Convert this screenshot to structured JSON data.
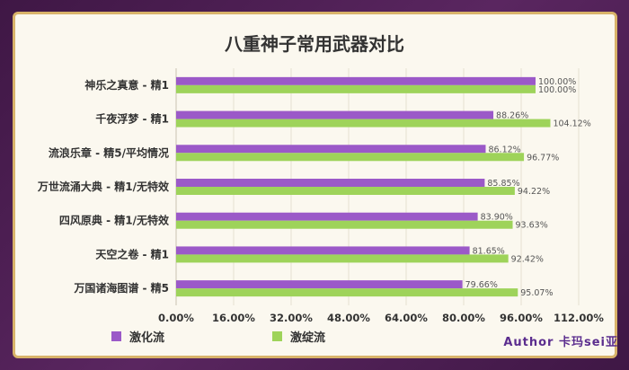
{
  "chart_data": {
    "type": "bar",
    "orientation": "horizontal",
    "title": "八重神子常用武器对比",
    "categories": [
      "神乐之真意 - 精1",
      "千夜浮梦 - 精1",
      "流浪乐章 - 精5/平均情况",
      "万世流涌大典 - 精1/无特效",
      "四风原典 - 精1/无特效",
      "天空之卷 - 精1",
      "万国诸海图谱 - 精5"
    ],
    "series": [
      {
        "name": "激化流",
        "color": "#9b59c8",
        "values": [
          100.0,
          88.26,
          86.12,
          85.85,
          83.9,
          81.65,
          79.66
        ],
        "labels": [
          "100.00%",
          "88.26%",
          "86.12%",
          "85.85%",
          "83.90%",
          "81.65%",
          "79.66%"
        ]
      },
      {
        "name": "激绽流",
        "color": "#9ed35a",
        "values": [
          100.0,
          104.12,
          96.77,
          94.22,
          93.63,
          92.42,
          95.07
        ],
        "labels": [
          "100.00%",
          "104.12%",
          "96.77%",
          "94.22%",
          "93.63%",
          "92.42%",
          "95.07%"
        ]
      }
    ],
    "xlim": [
      0,
      112
    ],
    "xticks": [
      "0.00%",
      "16.00%",
      "32.00%",
      "48.00%",
      "64.00%",
      "80.00%",
      "96.00%",
      "112.00%"
    ],
    "xtick_values": [
      0,
      16,
      32,
      48,
      64,
      80,
      96,
      112
    ],
    "grid": true,
    "legend_position": "bottom-left"
  },
  "author": "Author    卡玛sei亚"
}
